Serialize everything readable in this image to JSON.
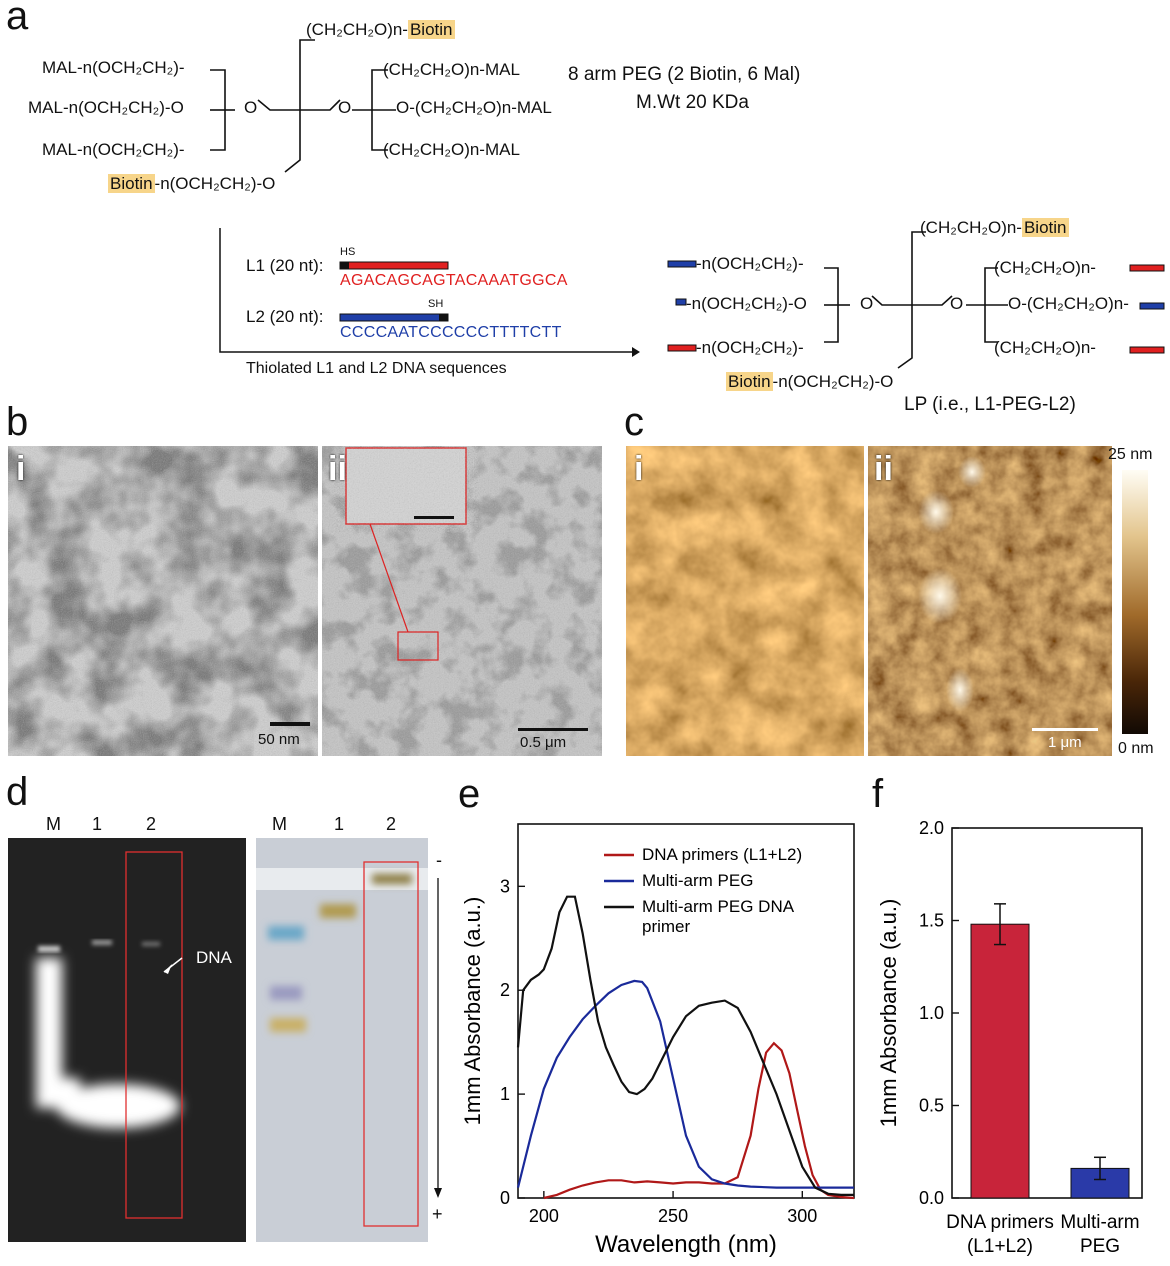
{
  "panel_labels": {
    "a": "a",
    "b": "b",
    "c": "c",
    "d": "d",
    "e": "e",
    "f": "f"
  },
  "panel_a": {
    "top_molecule": {
      "arm_top": "(CH₂CH₂O)n-",
      "arm_top_biotin": "Biotin",
      "left1": "MAL-n(OCH₂CH₂)-",
      "left2": "MAL-n(OCH₂CH₂)-O",
      "left3": "MAL-n(OCH₂CH₂)-",
      "right1": "(CH₂CH₂O)n-MAL",
      "right2": "O-(CH₂CH₂O)n-MAL",
      "right3": "(CH₂CH₂O)n-MAL",
      "bottom_biotin": "Biotin",
      "bottom": "-n(OCH₂CH₂)"
    },
    "desc_line1": "8 arm PEG (2 Biotin, 6 Mal)",
    "desc_line2": "M.Wt 20 KDa",
    "l1_label": "L1 (20 nt):",
    "l1_tag": "HS",
    "l1_seq": "AGACAGCAGTACAAATGGCA",
    "l2_label": "L2 (20 nt):",
    "l2_tag": "SH",
    "l2_seq": "CCCCAATCCCCCCTTTTCTT",
    "arrow_caption": "Thiolated L1 and L2 DNA sequences",
    "product": {
      "arm_top": "(CH₂CH₂O)n-",
      "arm_top_biotin": "Biotin",
      "left1": "-n(OCH₂CH₂)-",
      "left2": "-n(OCH₂CH₂)-O",
      "left3": "-n(OCH₂CH₂)-",
      "right1": "(CH₂CH₂O)n-",
      "right2": "O-(CH₂CH₂O)n-",
      "right3": "(CH₂CH₂O)n-",
      "bottom_biotin": "Biotin",
      "bottom": "-n(OCH₂CH₂)",
      "caption": "LP (i.e., L1-PEG-L2)"
    },
    "colors": {
      "l1": "#e02020",
      "l2": "#1f3fa8",
      "biotin": "#f7d58a"
    }
  },
  "panel_b": {
    "i": "i",
    "ii": "ii",
    "scale_i": "50 nm",
    "scale_ii": "0.5 μm"
  },
  "panel_c": {
    "i": "i",
    "ii": "ii",
    "scale": "1 μm",
    "colorbar_max": "25 nm",
    "colorbar_min": "0 nm"
  },
  "panel_d": {
    "left_lanes": [
      "M",
      "1",
      "2"
    ],
    "right_lanes": [
      "M",
      "1",
      "2"
    ],
    "dna_label": "DNA",
    "minus": "-",
    "plus": "+"
  },
  "chart_data": [
    {
      "type": "line",
      "xlabel": "Wavelength (nm)",
      "ylabel": "1mm Absorbance (a.u.)",
      "xlim": [
        190,
        320
      ],
      "ylim": [
        0,
        3.6
      ],
      "xticks": [
        "200",
        "250",
        "300"
      ],
      "yticks": [
        "0",
        "1",
        "2",
        "3"
      ],
      "legend_position": "top-right",
      "series": [
        {
          "name": "DNA primers (L1+L2)",
          "color": "#b01818",
          "x": [
            200,
            205,
            210,
            215,
            220,
            225,
            230,
            235,
            240,
            245,
            250,
            255,
            260,
            265,
            270,
            275,
            280,
            283,
            286,
            289,
            292,
            295,
            298,
            301,
            304,
            307,
            310,
            315,
            320
          ],
          "y": [
            0.0,
            0.03,
            0.08,
            0.12,
            0.15,
            0.17,
            0.17,
            0.15,
            0.16,
            0.15,
            0.14,
            0.15,
            0.15,
            0.14,
            0.14,
            0.2,
            0.6,
            1.05,
            1.4,
            1.49,
            1.42,
            1.2,
            0.85,
            0.5,
            0.22,
            0.08,
            0.03,
            0.01,
            0.0
          ]
        },
        {
          "name": "Multi-arm PEG",
          "color": "#1a2a9a",
          "x": [
            190,
            195,
            200,
            205,
            210,
            215,
            220,
            225,
            230,
            235,
            238,
            240,
            245,
            250,
            255,
            260,
            265,
            270,
            275,
            280,
            290,
            300,
            310,
            320
          ],
          "y": [
            0.1,
            0.6,
            1.05,
            1.35,
            1.55,
            1.72,
            1.85,
            1.97,
            2.05,
            2.09,
            2.08,
            2.02,
            1.7,
            1.15,
            0.6,
            0.3,
            0.18,
            0.14,
            0.12,
            0.11,
            0.1,
            0.1,
            0.1,
            0.1
          ]
        },
        {
          "name": "Multi-arm PEG DNA primer",
          "color": "#111111",
          "x": [
            190,
            192,
            195,
            198,
            200,
            203,
            206,
            209,
            212,
            215,
            218,
            221,
            224,
            227,
            230,
            233,
            236,
            239,
            242,
            245,
            250,
            255,
            260,
            265,
            270,
            275,
            280,
            285,
            290,
            295,
            300,
            305,
            310,
            315,
            320
          ],
          "y": [
            1.45,
            2.0,
            2.1,
            2.15,
            2.2,
            2.4,
            2.75,
            2.9,
            2.9,
            2.55,
            2.1,
            1.7,
            1.45,
            1.28,
            1.12,
            1.02,
            1.0,
            1.05,
            1.15,
            1.3,
            1.55,
            1.75,
            1.85,
            1.88,
            1.9,
            1.83,
            1.6,
            1.3,
            1.0,
            0.65,
            0.3,
            0.1,
            0.04,
            0.03,
            0.03
          ]
        }
      ]
    },
    {
      "type": "bar",
      "categories": [
        "DNA primers\n(L1+L2)",
        "Multi-arm\nPEG"
      ],
      "category_lines": [
        [
          "DNA primers",
          "(L1+L2)"
        ],
        [
          "Multi-arm",
          "PEG"
        ]
      ],
      "values": [
        1.48,
        0.16
      ],
      "errors": [
        0.11,
        0.06
      ],
      "colors": [
        "#c8243a",
        "#2a3aa8"
      ],
      "ylabel": "1mm Absorbance (a.u.)",
      "xlabel": "",
      "ylim": [
        0,
        2.0
      ],
      "yticks": [
        "0.0",
        "0.5",
        "1.0",
        "1.5",
        "2.0"
      ]
    }
  ]
}
